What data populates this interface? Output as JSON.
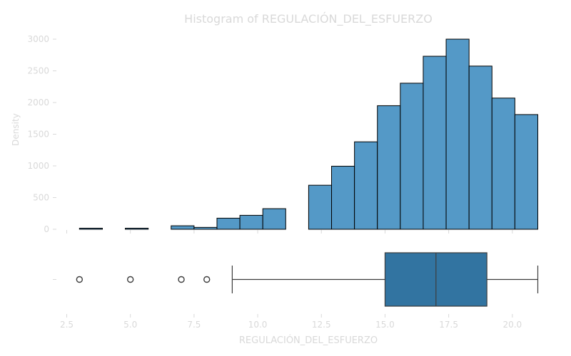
{
  "chart_data": {
    "type": "histogram",
    "title": "Histogram of REGULACIÓN_DEL_ESFUERZO",
    "xlabel": "REGULACIÓN_DEL_ESFUERZO",
    "ylabel": "Density",
    "xlim": [
      2.5,
      21
    ],
    "ylim": [
      0,
      3000
    ],
    "xticks": [
      "2.5",
      "5.0",
      "7.5",
      "10.0",
      "12.5",
      "15.0",
      "17.5",
      "20.0"
    ],
    "yticks": [
      "0",
      "500",
      "1000",
      "1500",
      "2000",
      "2500",
      "3000"
    ],
    "bins": [
      {
        "x0": 3.0,
        "x1": 3.9,
        "count": 5
      },
      {
        "x0": 3.9,
        "x1": 4.8,
        "count": 0
      },
      {
        "x0": 4.8,
        "x1": 5.7,
        "count": 5
      },
      {
        "x0": 5.7,
        "x1": 6.6,
        "count": 0
      },
      {
        "x0": 6.6,
        "x1": 7.5,
        "count": 55
      },
      {
        "x0": 7.5,
        "x1": 8.4,
        "count": 30
      },
      {
        "x0": 8.4,
        "x1": 9.3,
        "count": 175
      },
      {
        "x0": 9.3,
        "x1": 10.2,
        "count": 220
      },
      {
        "x0": 10.2,
        "x1": 11.1,
        "count": 325
      },
      {
        "x0": 11.1,
        "x1": 12.0,
        "count": 0
      },
      {
        "x0": 12.0,
        "x1": 12.9,
        "count": 695
      },
      {
        "x0": 12.9,
        "x1": 13.8,
        "count": 995
      },
      {
        "x0": 13.8,
        "x1": 14.7,
        "count": 1380
      },
      {
        "x0": 14.7,
        "x1": 15.6,
        "count": 1950
      },
      {
        "x0": 15.6,
        "x1": 16.5,
        "count": 2305
      },
      {
        "x0": 16.5,
        "x1": 17.4,
        "count": 2730
      },
      {
        "x0": 17.4,
        "x1": 18.3,
        "count": 3000
      },
      {
        "x0": 18.3,
        "x1": 19.2,
        "count": 2575
      },
      {
        "x0": 19.2,
        "x1": 20.1,
        "count": 2070
      },
      {
        "x0": 20.1,
        "x1": 21.0,
        "count": 1810
      }
    ],
    "boxplot": {
      "whisker_low": 9,
      "q1": 15,
      "median": 17,
      "q3": 19,
      "whisker_high": 21,
      "outliers": [
        3,
        5,
        7,
        8
      ]
    },
    "colors": {
      "hist_fill": "#5499c7",
      "box_fill": "#3274a1",
      "edge": "#000000",
      "text": "#d9d9d9"
    }
  }
}
